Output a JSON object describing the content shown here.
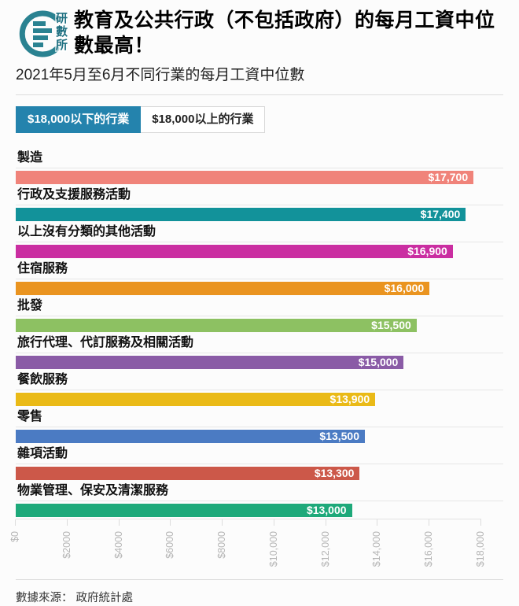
{
  "header": {
    "logo": "研數所",
    "title": "教育及公共行政（不包括政府）的每月工資中位數最高！",
    "subtitle": "2021年5月至6月不同行業的每月工資中位數"
  },
  "tabs": [
    {
      "label": "$18,000以下的行業",
      "active": true
    },
    {
      "label": "$18,000以上的行業",
      "active": false
    }
  ],
  "chart_data": {
    "type": "bar",
    "orientation": "horizontal",
    "title": "2021年5月至6月不同行業的每月工資中位數",
    "categories": [
      "製造",
      "行政及支援服務活動",
      "以上沒有分類的其他活動",
      "住宿服務",
      "批發",
      "旅行代理、代訂服務及相關活動",
      "餐飲服務",
      "零售",
      "雜項活動",
      "物業管理、保安及清潔服務"
    ],
    "values": [
      17700,
      17400,
      16900,
      16000,
      15500,
      15000,
      13900,
      13500,
      13300,
      13000
    ],
    "value_labels": [
      "$17,700",
      "$17,400",
      "$16,900",
      "$16,000",
      "$15,500",
      "$15,000",
      "$13,900",
      "$13,500",
      "$13,300",
      "$13,000"
    ],
    "colors": [
      "#f0837a",
      "#12929a",
      "#ca2ea1",
      "#ea9420",
      "#8dc162",
      "#8a5ba6",
      "#eaba17",
      "#4b7bc3",
      "#cc5849",
      "#1ea97a"
    ],
    "xlim": [
      0,
      18000
    ],
    "x_tick_values": [
      0,
      2000,
      4000,
      6000,
      8000,
      10000,
      12000,
      14000,
      16000,
      18000
    ],
    "x_tick_labels": [
      "$0",
      "$2000",
      "$4000",
      "$6000",
      "$8000",
      "$10,000",
      "$12,000",
      "$14,000",
      "$16,000",
      "$18,000"
    ],
    "grid": "row-separator-lines",
    "legend": "none"
  },
  "footer": {
    "source": "數據來源： 政府統計處"
  },
  "colors": {
    "tab_active": "#2483ad",
    "logo_teal": "#2a8291",
    "axis_label": "#b5b5b5",
    "background": "#fcfcfc"
  }
}
